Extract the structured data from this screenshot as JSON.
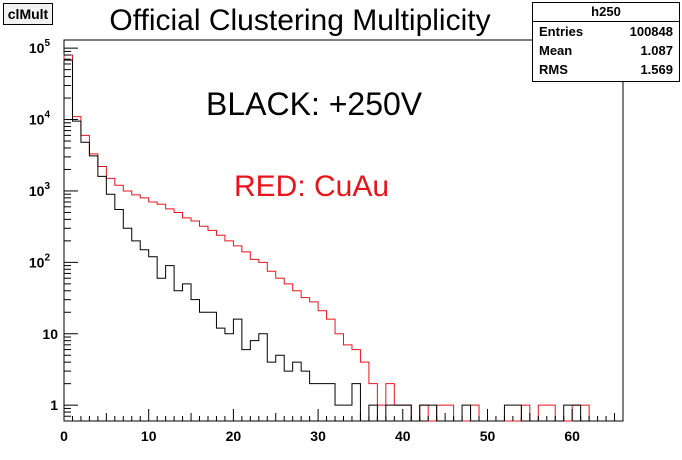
{
  "tag": "clMult",
  "chart_data": {
    "type": "histogram",
    "title": "Official Clustering Multiplicity",
    "xlim": [
      0,
      66
    ],
    "ylim": [
      0.6,
      130000
    ],
    "log_y": true,
    "x_ticks": [
      0,
      10,
      20,
      30,
      40,
      50,
      60
    ],
    "y_ticks": [
      {
        "value": 1,
        "label": "1"
      },
      {
        "value": 10,
        "label": "10"
      },
      {
        "value": 100,
        "label": "10",
        "exp": "2"
      },
      {
        "value": 1000,
        "label": "10",
        "exp": "3"
      },
      {
        "value": 10000,
        "label": "10",
        "exp": "4"
      },
      {
        "value": 100000,
        "label": "10",
        "exp": "5"
      }
    ],
    "bin_width": 1,
    "series": [
      {
        "name": "BLACK: +250V",
        "color": "#000000",
        "values": [
          68000,
          9500,
          4800,
          3100,
          1600,
          900,
          550,
          300,
          200,
          150,
          120,
          60,
          90,
          40,
          50,
          30,
          20,
          20,
          12,
          10,
          16,
          6,
          8,
          10,
          4,
          5,
          3,
          4,
          3,
          2,
          2,
          2,
          1,
          1,
          2,
          0,
          1,
          0,
          1,
          1,
          1,
          0,
          1,
          1,
          0,
          0,
          0,
          1,
          0,
          0,
          0,
          0,
          1,
          1,
          0,
          0,
          0,
          0,
          0,
          1,
          1,
          0,
          0,
          0,
          0,
          0
        ]
      },
      {
        "name": "RED: CuAu",
        "color": "#e8141b",
        "values": [
          80000,
          11000,
          6000,
          3300,
          2200,
          1500,
          1200,
          1000,
          880,
          800,
          700,
          650,
          560,
          500,
          420,
          380,
          320,
          280,
          240,
          200,
          170,
          140,
          110,
          100,
          75,
          60,
          50,
          40,
          32,
          28,
          21,
          16,
          10,
          7,
          6,
          4,
          2,
          1,
          2,
          1,
          1,
          0,
          1,
          0,
          1,
          1,
          0,
          0,
          1,
          0,
          0,
          0,
          0,
          0,
          1,
          0,
          1,
          1,
          0,
          0,
          1,
          1,
          0,
          0,
          0,
          0
        ]
      }
    ]
  },
  "stats": {
    "name": "h250",
    "rows": [
      {
        "label": "Entries",
        "value": "100848"
      },
      {
        "label": "Mean",
        "value": "1.087"
      },
      {
        "label": "RMS",
        "value": "1.569"
      }
    ]
  },
  "annotations": {
    "black_label": "BLACK: +250V",
    "red_label": "RED: CuAu"
  }
}
